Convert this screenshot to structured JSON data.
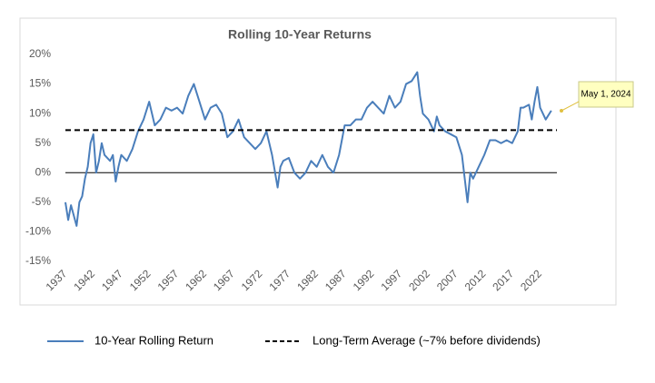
{
  "chart_data": {
    "type": "line",
    "title": "Rolling 10-Year Returns",
    "x": [
      1937,
      1937.5,
      1938,
      1939,
      1939.5,
      1940,
      1940.5,
      1941,
      1941.5,
      1942,
      1942.5,
      1943,
      1943.5,
      1944,
      1945,
      1945.5,
      1946,
      1946.5,
      1947,
      1948,
      1949,
      1950,
      1951,
      1952,
      1953,
      1954,
      1955,
      1956,
      1957,
      1958,
      1959,
      1960,
      1961,
      1962,
      1963,
      1964,
      1965,
      1966,
      1967,
      1968,
      1969,
      1970,
      1971,
      1972,
      1973,
      1974,
      1975,
      1975.5,
      1976,
      1977,
      1978,
      1979,
      1980,
      1981,
      1982,
      1983,
      1984,
      1985,
      1986,
      1987,
      1988,
      1989,
      1990,
      1991,
      1992,
      1993,
      1994,
      1995,
      1996,
      1997,
      1998,
      1999,
      2000,
      2000.5,
      2001,
      2002,
      2003,
      2003.5,
      2004,
      2005,
      2006,
      2007,
      2008,
      2009,
      2009.5,
      2010,
      2011,
      2012,
      2013,
      2014,
      2015,
      2016,
      2017,
      2018,
      2018.5,
      2019,
      2020,
      2020.5,
      2021,
      2021.5,
      2022,
      2023,
      2024
    ],
    "series": [
      {
        "name": "10-Year Rolling Return",
        "color": "#4a7ebb",
        "values": [
          -5,
          -8,
          -5.5,
          -9,
          -5,
          -4,
          -1,
          1,
          5,
          6.5,
          0,
          2,
          5,
          3,
          2,
          3,
          -1.5,
          1,
          3,
          2,
          4,
          7,
          9,
          12,
          8,
          9,
          11,
          10.5,
          11,
          10,
          13,
          15,
          12,
          9,
          11,
          11.5,
          10,
          6,
          7,
          9,
          6,
          5,
          4,
          5,
          7,
          3,
          -2.5,
          1,
          2,
          2.5,
          0,
          -1,
          0,
          2,
          1,
          3,
          1,
          0,
          3,
          8,
          8,
          9,
          9,
          11,
          12,
          11,
          10,
          13,
          11,
          12,
          15,
          15.5,
          17,
          13,
          10,
          9,
          7,
          9.5,
          8,
          7,
          6.5,
          6,
          3,
          -5,
          0,
          -1,
          1,
          3,
          5.5,
          5.5,
          5,
          5.5,
          5,
          7,
          11,
          11,
          11.5,
          9,
          12,
          14.5,
          11,
          9,
          10.5
        ]
      }
    ],
    "reference_line": {
      "name": "Long-Term Average (~7% before dividends)",
      "value": 7.2,
      "color": "#000000"
    },
    "annotation": "May 1, 2024",
    "xlim": [
      1937,
      2025
    ],
    "xticks": [
      1937,
      1942,
      1947,
      1952,
      1957,
      1962,
      1967,
      1972,
      1977,
      1982,
      1987,
      1992,
      1997,
      2002,
      2007,
      2012,
      2017,
      2022
    ],
    "ylim": [
      -15,
      20
    ],
    "yticks": [
      {
        "value": -15,
        "label": "-15%"
      },
      {
        "value": -10,
        "label": "-10%"
      },
      {
        "value": -5,
        "label": "-5%"
      },
      {
        "value": 0,
        "label": "0%"
      },
      {
        "value": 5,
        "label": "5%"
      },
      {
        "value": 10,
        "label": "10%"
      },
      {
        "value": 15,
        "label": "15%"
      },
      {
        "value": 20,
        "label": "20%"
      }
    ],
    "grid": false
  }
}
